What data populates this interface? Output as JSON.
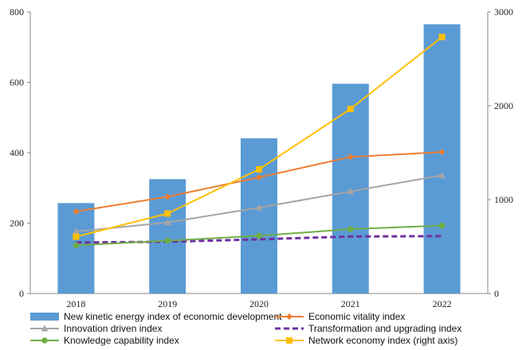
{
  "chart_data": {
    "type": "bar+line",
    "categories": [
      "2018",
      "2019",
      "2020",
      "2021",
      "2022"
    ],
    "y_left": {
      "lim": [
        0,
        800
      ],
      "ticks": [
        0,
        200,
        400,
        600,
        800
      ]
    },
    "y_right": {
      "lim": [
        0,
        3000
      ],
      "ticks": [
        0,
        1000,
        2000,
        3000
      ]
    },
    "grid": false,
    "legend_position": "bottom",
    "series": [
      {
        "name": "New kinetic energy index of economic development",
        "kind": "bar",
        "axis": "left",
        "color": "#5B9BD5",
        "values": [
          257,
          325,
          441,
          596,
          765
        ]
      },
      {
        "name": "Economic vitality index",
        "kind": "line",
        "marker": "diamond",
        "axis": "left",
        "color": "#ED7D31",
        "values": [
          233,
          275,
          330,
          388,
          402
        ]
      },
      {
        "name": "Innovation driven index",
        "kind": "line",
        "marker": "triangle",
        "axis": "left",
        "color": "#A5A5A5",
        "values": [
          176,
          202,
          244,
          290,
          336
        ]
      },
      {
        "name": "Transformation and upgrading index",
        "kind": "dashed",
        "marker": "none",
        "axis": "left",
        "color": "#7030A0",
        "values": [
          145,
          147,
          154,
          162,
          163
        ]
      },
      {
        "name": "Knowledge capability index",
        "kind": "line",
        "marker": "circle",
        "axis": "left",
        "color": "#70AD47",
        "values": [
          137,
          150,
          164,
          183,
          193
        ]
      },
      {
        "name": "Network economy index (right axis)",
        "kind": "line",
        "marker": "square",
        "axis": "right",
        "color": "#FFC000",
        "values": [
          605,
          852,
          1323,
          1967,
          2733
        ]
      }
    ]
  }
}
